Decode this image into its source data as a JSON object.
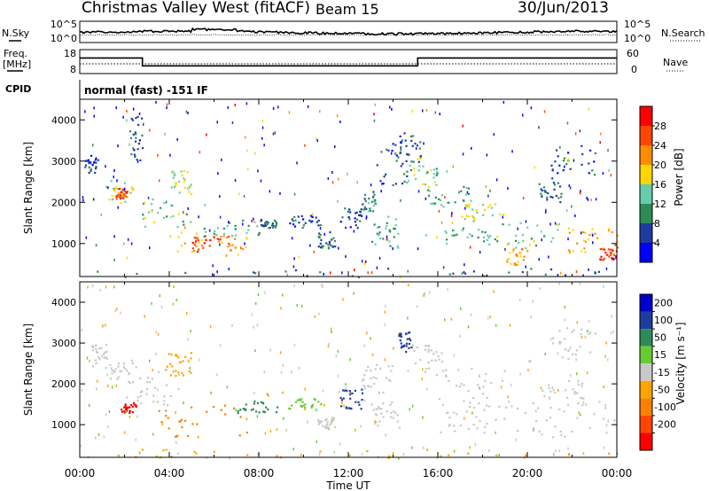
{
  "header": {
    "title": "Christmas Valley West (fitACF)",
    "beam": "Beam 15",
    "date": "30/Jun/2013"
  },
  "noise_panel": {
    "left_label": "N.Sky",
    "right_label": "N.Search",
    "left_ticks": [
      "10^5",
      "10^0"
    ],
    "right_ticks": [
      "10^5",
      "10^0"
    ]
  },
  "freq_panel": {
    "left_label_1": "Freq.",
    "left_label_2": "[MHz]",
    "right_label": "Nave",
    "left_ticks": [
      "18",
      "8"
    ],
    "right_ticks": [
      "60",
      "0"
    ],
    "freq_steps": [
      {
        "t": 0,
        "f": 14.5
      },
      {
        "t": 2.8,
        "f": 11.2
      },
      {
        "t": 15.1,
        "f": 14.5
      },
      {
        "t": 24,
        "f": 14.5
      }
    ]
  },
  "cpid": {
    "label": "CPID",
    "value": "normal (fast) -151 IF"
  },
  "colors": {
    "power_scale": [
      "#0000ff",
      "#1e3ca0",
      "#2e8b57",
      "#66cdaa",
      "#ffd700",
      "#ff8c00",
      "#ff4500",
      "#ff0000"
    ],
    "velocity_scale": [
      "#0000cd",
      "#1e3ca0",
      "#2e8b57",
      "#66cc33",
      "#c8c8c8",
      "#ffa500",
      "#ff7f00",
      "#ff4500",
      "#ff0000"
    ]
  },
  "chart_data": [
    {
      "type": "heatmap",
      "name": "power",
      "xlabel": "",
      "ylabel": "Slant Range [km]",
      "xlim": [
        0,
        24
      ],
      "ylim": [
        200,
        4500
      ],
      "yticks": [
        "1000",
        "2000",
        "3000",
        "4000"
      ],
      "colorbar": {
        "label": "Power [dB]",
        "range": [
          0,
          32
        ],
        "ticks": [
          "4",
          "8",
          "12",
          "16",
          "20",
          "24",
          "28"
        ]
      },
      "regions": [
        {
          "x": [
            0.0,
            24.0
          ],
          "y": [
            200,
            420
          ],
          "value": 8
        },
        {
          "x": [
            0.2,
            0.8
          ],
          "y": [
            2700,
            3200
          ],
          "value": 6
        },
        {
          "x": [
            1.1,
            2.4
          ],
          "y": [
            2000,
            2600
          ],
          "value": 16
        },
        {
          "x": [
            1.6,
            2.1
          ],
          "y": [
            2100,
            2400
          ],
          "value": 26
        },
        {
          "x": [
            2.2,
            2.8
          ],
          "y": [
            3000,
            4100
          ],
          "value": 6
        },
        {
          "x": [
            2.7,
            5.0
          ],
          "y": [
            1400,
            2200
          ],
          "value": 14
        },
        {
          "x": [
            4.0,
            5.0
          ],
          "y": [
            2200,
            2800
          ],
          "value": 16
        },
        {
          "x": [
            4.0,
            7.5
          ],
          "y": [
            800,
            1300
          ],
          "value": 20
        },
        {
          "x": [
            5.0,
            6.8
          ],
          "y": [
            800,
            1200
          ],
          "value": 27
        },
        {
          "x": [
            5.5,
            8.0
          ],
          "y": [
            1200,
            1600
          ],
          "value": 12
        },
        {
          "x": [
            8.0,
            8.8
          ],
          "y": [
            1400,
            1600
          ],
          "value": 8
        },
        {
          "x": [
            9.3,
            10.8
          ],
          "y": [
            1400,
            1700
          ],
          "value": 6
        },
        {
          "x": [
            10.6,
            11.4
          ],
          "y": [
            900,
            1300
          ],
          "value": 8
        },
        {
          "x": [
            11.6,
            12.6
          ],
          "y": [
            1400,
            1900
          ],
          "value": 6
        },
        {
          "x": [
            12.5,
            13.2
          ],
          "y": [
            1800,
            2300
          ],
          "value": 10
        },
        {
          "x": [
            13.0,
            14.2
          ],
          "y": [
            900,
            1700
          ],
          "value": 12
        },
        {
          "x": [
            13.2,
            14.6
          ],
          "y": [
            2400,
            3500
          ],
          "value": 6
        },
        {
          "x": [
            14.0,
            15.2
          ],
          "y": [
            3000,
            3800
          ],
          "value": 8
        },
        {
          "x": [
            14.5,
            16.0
          ],
          "y": [
            2300,
            3100
          ],
          "value": 14
        },
        {
          "x": [
            15.5,
            17.5
          ],
          "y": [
            1900,
            2400
          ],
          "value": 12
        },
        {
          "x": [
            17.0,
            19.0
          ],
          "y": [
            1500,
            2000
          ],
          "value": 16
        },
        {
          "x": [
            16.2,
            18.5
          ],
          "y": [
            1000,
            1400
          ],
          "value": 12
        },
        {
          "x": [
            18.5,
            21.5
          ],
          "y": [
            900,
            1600
          ],
          "value": 14
        },
        {
          "x": [
            19.0,
            20.0
          ],
          "y": [
            500,
            900
          ],
          "value": 22
        },
        {
          "x": [
            21.5,
            24.0
          ],
          "y": [
            800,
            1400
          ],
          "value": 20
        },
        {
          "x": [
            23.2,
            24.0
          ],
          "y": [
            600,
            1000
          ],
          "value": 28
        },
        {
          "x": [
            21.0,
            23.0
          ],
          "y": [
            2600,
            3400
          ],
          "value": 6
        },
        {
          "x": [
            20.5,
            21.5
          ],
          "y": [
            2000,
            2500
          ],
          "value": 8
        }
      ]
    },
    {
      "type": "heatmap",
      "name": "velocity",
      "xlabel": "Time UT",
      "ylabel": "Slant Range [km]",
      "xlim": [
        0,
        24
      ],
      "ylim": [
        200,
        4500
      ],
      "xticks": [
        "00:00",
        "04:00",
        "08:00",
        "12:00",
        "16:00",
        "20:00",
        "00:00"
      ],
      "yticks": [
        "1000",
        "2000",
        "3000",
        "4000"
      ],
      "colorbar": {
        "label": "Velocity [m s⁻¹]",
        "ticks": [
          "200",
          "100",
          "50",
          "15",
          "-15",
          "-50",
          "-100",
          "-200"
        ]
      },
      "regions": [
        {
          "x": [
            0.0,
            24.0
          ],
          "y": [
            200,
            420
          ],
          "value": -40
        },
        {
          "x": [
            0.5,
            1.2
          ],
          "y": [
            2400,
            3000
          ],
          "value": 0
        },
        {
          "x": [
            1.2,
            2.5
          ],
          "y": [
            2000,
            2600
          ],
          "value": 0
        },
        {
          "x": [
            1.8,
            2.5
          ],
          "y": [
            1300,
            1600
          ],
          "value": -250
        },
        {
          "x": [
            2.5,
            4.5
          ],
          "y": [
            1500,
            2400
          ],
          "value": 0
        },
        {
          "x": [
            3.8,
            5.0
          ],
          "y": [
            2200,
            2800
          ],
          "value": -30
        },
        {
          "x": [
            3.5,
            7.8
          ],
          "y": [
            700,
            1500
          ],
          "value": -70
        },
        {
          "x": [
            7.0,
            8.8
          ],
          "y": [
            1300,
            1600
          ],
          "value": 60
        },
        {
          "x": [
            9.3,
            10.8
          ],
          "y": [
            1400,
            1700
          ],
          "value": 40
        },
        {
          "x": [
            10.6,
            11.4
          ],
          "y": [
            900,
            1200
          ],
          "value": 0
        },
        {
          "x": [
            11.6,
            12.6
          ],
          "y": [
            1400,
            1900
          ],
          "value": 150
        },
        {
          "x": [
            12.5,
            14.0
          ],
          "y": [
            1800,
            2500
          ],
          "value": 0
        },
        {
          "x": [
            13.0,
            14.2
          ],
          "y": [
            1000,
            1600
          ],
          "value": 0
        },
        {
          "x": [
            14.2,
            14.8
          ],
          "y": [
            2800,
            3300
          ],
          "value": 150
        },
        {
          "x": [
            14.8,
            16.5
          ],
          "y": [
            2300,
            3000
          ],
          "value": 0
        },
        {
          "x": [
            15.5,
            19.0
          ],
          "y": [
            1500,
            2400
          ],
          "value": 0
        },
        {
          "x": [
            16.0,
            19.0
          ],
          "y": [
            800,
            1500
          ],
          "value": 0
        },
        {
          "x": [
            19.0,
            24.0
          ],
          "y": [
            700,
            1600
          ],
          "value": 0
        },
        {
          "x": [
            20.5,
            22.5
          ],
          "y": [
            1500,
            2100
          ],
          "value": 0
        },
        {
          "x": [
            21.0,
            23.0
          ],
          "y": [
            2600,
            3400
          ],
          "value": 0
        }
      ]
    }
  ]
}
